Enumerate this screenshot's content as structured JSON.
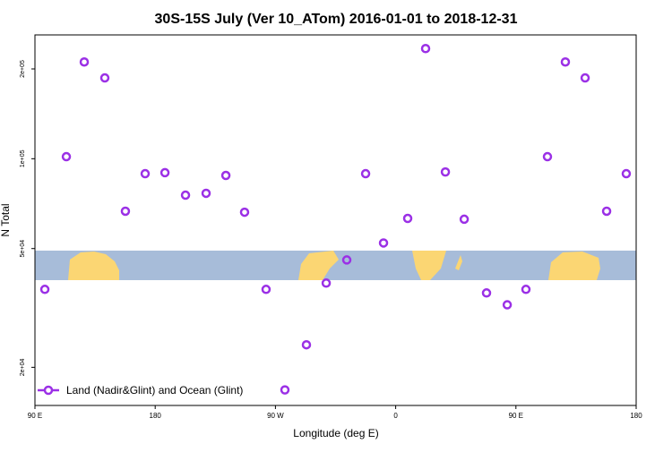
{
  "chart_data": {
    "type": "scatter",
    "title": "30S-15S July (Ver 10_ATom)   2016-01-01 to 2018-12-31",
    "x_label": "Longitude (deg E)",
    "y_label": "N Total",
    "log_y": true,
    "xlim": [
      90,
      540
    ],
    "xticks": [
      {
        "value": 90,
        "label": "90 E"
      },
      {
        "value": 180,
        "label": "180"
      },
      {
        "value": 270,
        "label": "90 W"
      },
      {
        "value": 360,
        "label": "0"
      },
      {
        "value": 450,
        "label": "90 E"
      },
      {
        "value": 540,
        "label": "180"
      }
    ],
    "ylim": [
      14900,
      260000
    ],
    "yticks": [
      {
        "value": 20000,
        "label": "2e+04"
      },
      {
        "value": 50000,
        "label": "5e+04"
      },
      {
        "value": 100000,
        "label": "1e+05"
      },
      {
        "value": 200000,
        "label": "2e+05"
      }
    ],
    "legend": "bottom-left",
    "series": [
      {
        "name": "Land (Nadir&Glint) and Ocean (Glint)",
        "color": "#9b30e6",
        "x": [
          97.4,
          113.5,
          126.9,
          142.3,
          157.7,
          172.5,
          187.3,
          202.7,
          218.1,
          232.9,
          246.9,
          263.0,
          277.1,
          293.2,
          308.0,
          323.4,
          337.5,
          350.9,
          369.0,
          382.4,
          397.2,
          411.3,
          428.0,
          443.5,
          457.5,
          473.6,
          487.0,
          501.8,
          517.9,
          532.6
        ],
        "values": [
          36500,
          101600,
          211000,
          186600,
          66700,
          89100,
          89800,
          75500,
          76600,
          87900,
          66200,
          36500,
          16800,
          23800,
          38300,
          45800,
          89100,
          52200,
          63100,
          234000,
          90300,
          62700,
          35500,
          32400,
          36500,
          101600,
          211000,
          186600,
          66700,
          89100
        ]
      }
    ]
  }
}
